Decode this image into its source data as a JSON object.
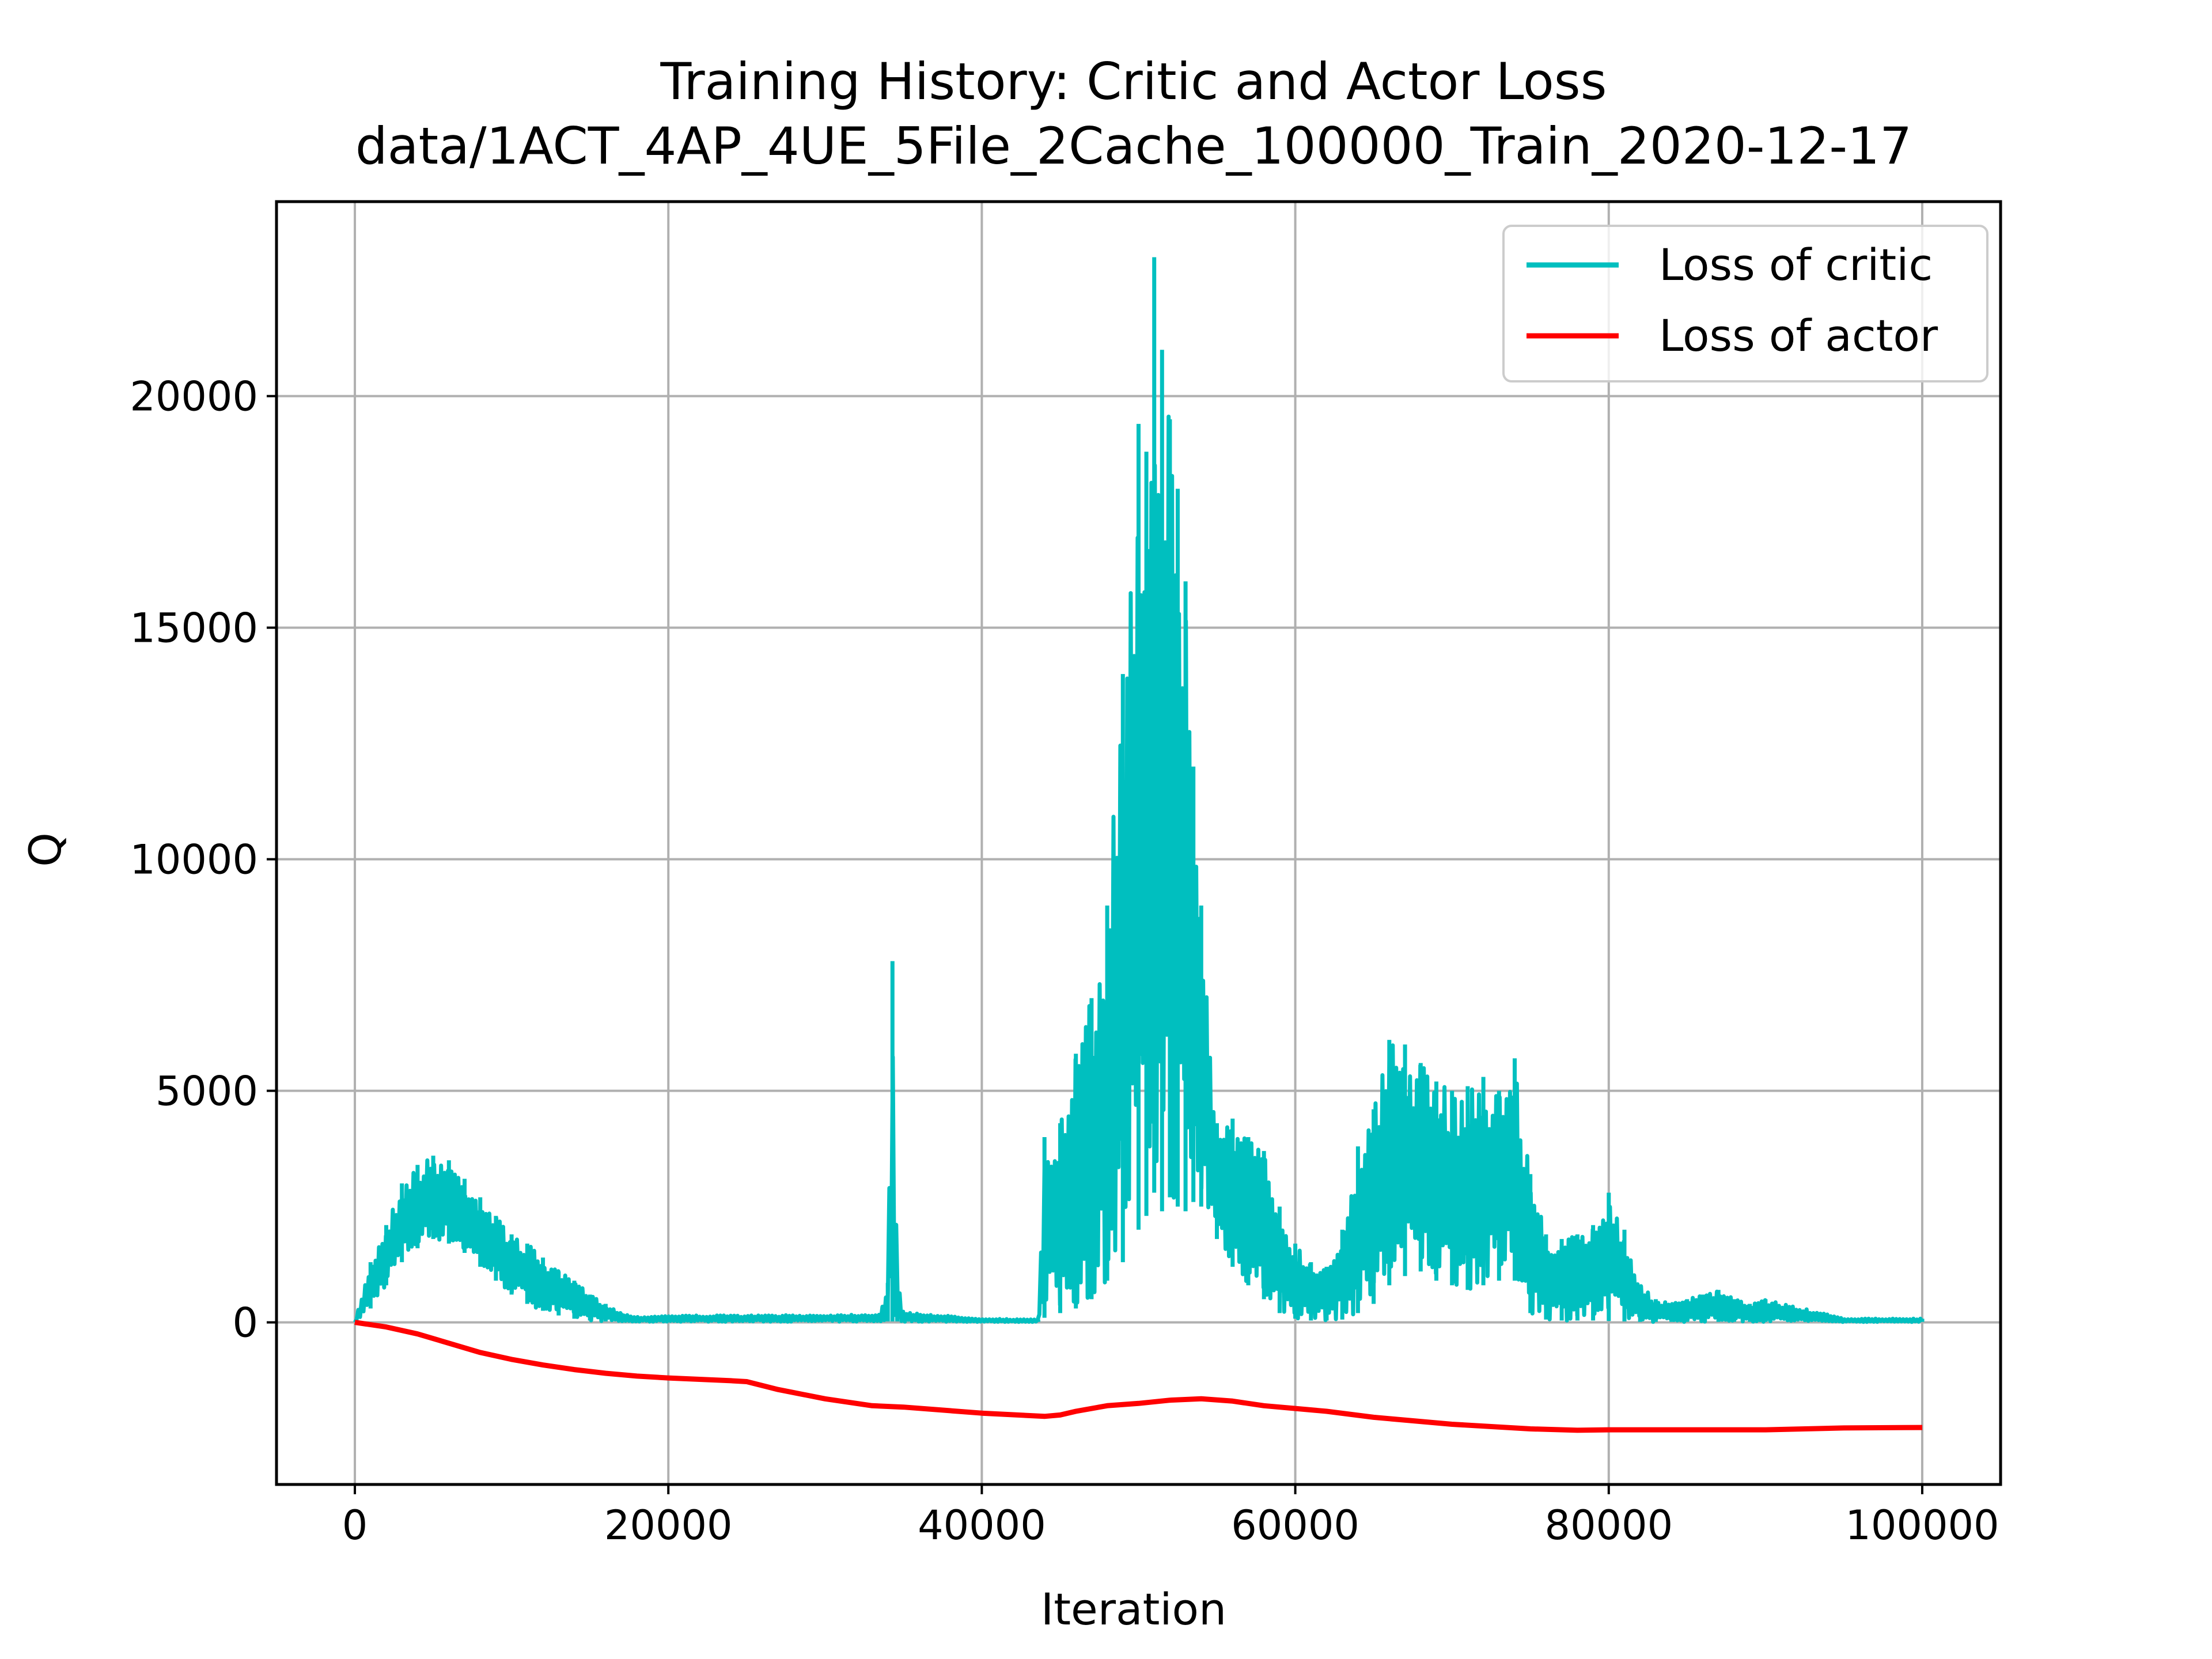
{
  "chart_data": {
    "type": "line",
    "title": "Training History: Critic and Actor Loss",
    "subtitle": "data/1ACT_4AP_4UE_5File_2Cache_100000_Train_2020-12-17",
    "xlabel": "Iteration",
    "ylabel": "Q",
    "xlim": [
      -5000,
      105000
    ],
    "ylim": [
      -3500,
      24200
    ],
    "xticks": [
      0,
      20000,
      40000,
      60000,
      80000,
      100000
    ],
    "xtick_labels": [
      "0",
      "20000",
      "40000",
      "60000",
      "80000",
      "100000"
    ],
    "yticks": [
      0,
      5000,
      10000,
      15000,
      20000
    ],
    "ytick_labels": [
      "0",
      "5000",
      "10000",
      "15000",
      "20000"
    ],
    "grid": true,
    "legend_position": "top-right",
    "series": [
      {
        "name": "Loss of critic",
        "color": "#00bfbf",
        "band": {
          "x": [
            0,
            1000,
            2000,
            3000,
            4000,
            5000,
            6000,
            7000,
            8000,
            9000,
            10000,
            11000,
            12000,
            13000,
            14000,
            15000,
            16000,
            17000,
            18000,
            20000,
            25000,
            30000,
            33500,
            34000,
            34300,
            34600,
            35000,
            40000,
            43600,
            44000,
            45000,
            46000,
            47000,
            48000,
            49000,
            50000,
            50500,
            51000,
            51500,
            52000,
            52500,
            53000,
            53500,
            54000,
            55000,
            56000,
            57000,
            58000,
            59000,
            60000,
            61000,
            62000,
            63000,
            64000,
            65000,
            66000,
            67000,
            68000,
            69000,
            70000,
            71000,
            72000,
            73000,
            74000,
            75000,
            76000,
            77000,
            78000,
            79000,
            80000,
            81000,
            82000,
            83000,
            84000,
            85000,
            86000,
            87000,
            88000,
            89000,
            90000,
            95000,
            100000
          ],
          "high": [
            0,
            1300,
            2100,
            3000,
            3400,
            3600,
            3500,
            3100,
            2700,
            2300,
            1900,
            1700,
            1400,
            1100,
            900,
            600,
            400,
            200,
            120,
            150,
            150,
            160,
            180,
            850,
            7800,
            900,
            220,
            80,
            60,
            4000,
            4300,
            5800,
            7000,
            9000,
            14000,
            19400,
            18800,
            23000,
            21000,
            19500,
            18000,
            16000,
            12000,
            9000,
            4300,
            4400,
            4000,
            3700,
            2500,
            1700,
            1300,
            1200,
            2000,
            3800,
            4600,
            6100,
            6000,
            5600,
            5200,
            5000,
            5100,
            5300,
            5000,
            5700,
            3200,
            1900,
            1800,
            1900,
            2100,
            2800,
            2000,
            800,
            500,
            400,
            500,
            600,
            700,
            500,
            400,
            500,
            80,
            80
          ],
          "low": [
            0,
            300,
            800,
            1300,
            1600,
            1800,
            1700,
            1500,
            1200,
            900,
            600,
            400,
            250,
            150,
            80,
            40,
            20,
            10,
            10,
            15,
            15,
            15,
            15,
            20,
            20,
            20,
            15,
            10,
            10,
            100,
            200,
            300,
            500,
            900,
            1300,
            2000,
            2300,
            2800,
            2400,
            2700,
            2500,
            2400,
            2600,
            2500,
            1800,
            1200,
            800,
            500,
            200,
            80,
            40,
            40,
            60,
            200,
            400,
            800,
            1000,
            1100,
            900,
            800,
            700,
            800,
            900,
            900,
            200,
            60,
            40,
            40,
            40,
            30,
            20,
            10,
            10,
            10,
            10,
            10,
            10,
            10,
            10,
            10,
            10,
            10
          ]
        }
      },
      {
        "name": "Loss of actor",
        "color": "#ff0000",
        "x": [
          0,
          2000,
          4000,
          6000,
          8000,
          10000,
          12000,
          14000,
          16000,
          18000,
          20000,
          22000,
          24000,
          25000,
          27000,
          30000,
          33000,
          35000,
          40000,
          44000,
          45000,
          46000,
          48000,
          50000,
          52000,
          54000,
          56000,
          58000,
          60000,
          62000,
          65000,
          70000,
          75000,
          78000,
          80000,
          85000,
          90000,
          95000,
          100000
        ],
        "y": [
          0,
          -100,
          -250,
          -450,
          -650,
          -800,
          -920,
          -1020,
          -1100,
          -1160,
          -1200,
          -1230,
          -1260,
          -1280,
          -1450,
          -1650,
          -1800,
          -1830,
          -1960,
          -2030,
          -2000,
          -1920,
          -1800,
          -1750,
          -1680,
          -1650,
          -1700,
          -1800,
          -1860,
          -1920,
          -2050,
          -2200,
          -2300,
          -2330,
          -2320,
          -2320,
          -2320,
          -2280,
          -2270
        ]
      }
    ]
  }
}
